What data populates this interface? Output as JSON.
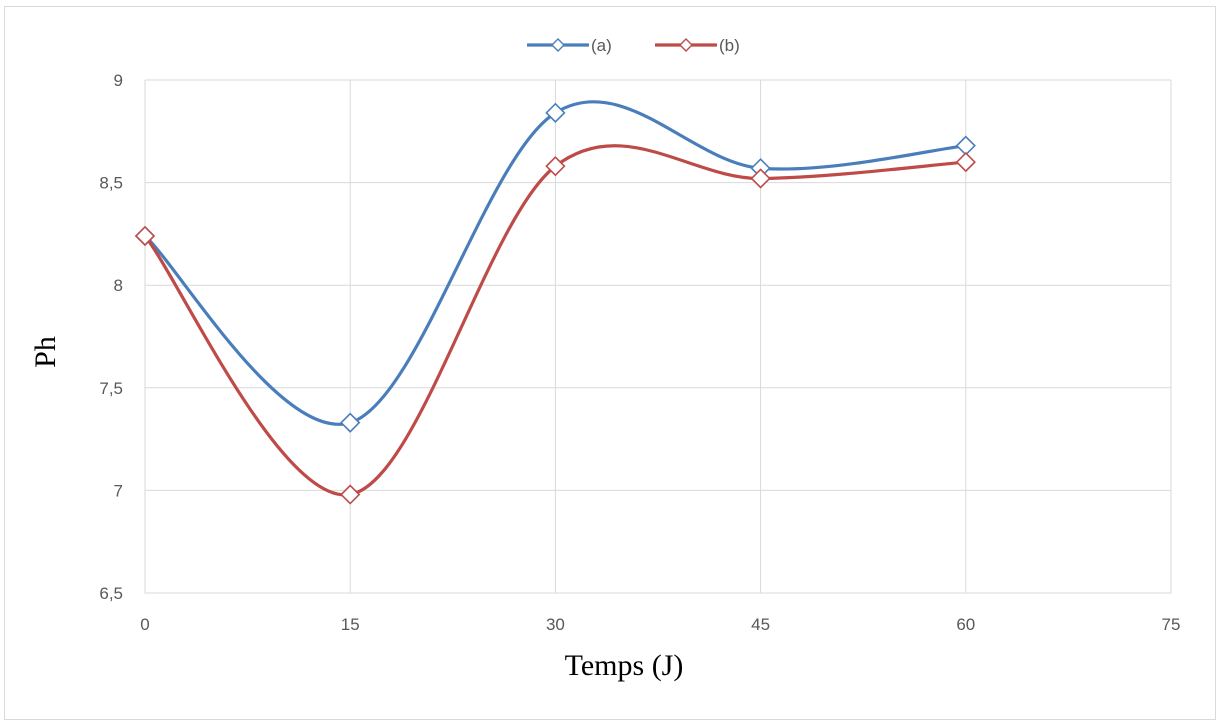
{
  "chart_data": {
    "type": "line",
    "smooth": true,
    "xlabel": "Temps (J)",
    "ylabel": "Ph",
    "xlim": [
      0,
      75
    ],
    "ylim": [
      6.5,
      9
    ],
    "x_ticks": [
      "0",
      "15",
      "30",
      "45",
      "60",
      "75"
    ],
    "y_ticks": [
      "6,5",
      "7",
      "7,5",
      "8",
      "8,5",
      "9"
    ],
    "grid": true,
    "legend_position": "top-center",
    "marker": "diamond",
    "series": [
      {
        "name": "(a)",
        "color": "#4a7ebb",
        "x": [
          0,
          15,
          30,
          45,
          60
        ],
        "y": [
          8.24,
          7.33,
          8.84,
          8.57,
          8.68
        ]
      },
      {
        "name": "(b)",
        "color": "#be4b48",
        "x": [
          0,
          15,
          30,
          45,
          60
        ],
        "y": [
          8.24,
          6.98,
          8.58,
          8.52,
          8.6
        ]
      }
    ]
  }
}
